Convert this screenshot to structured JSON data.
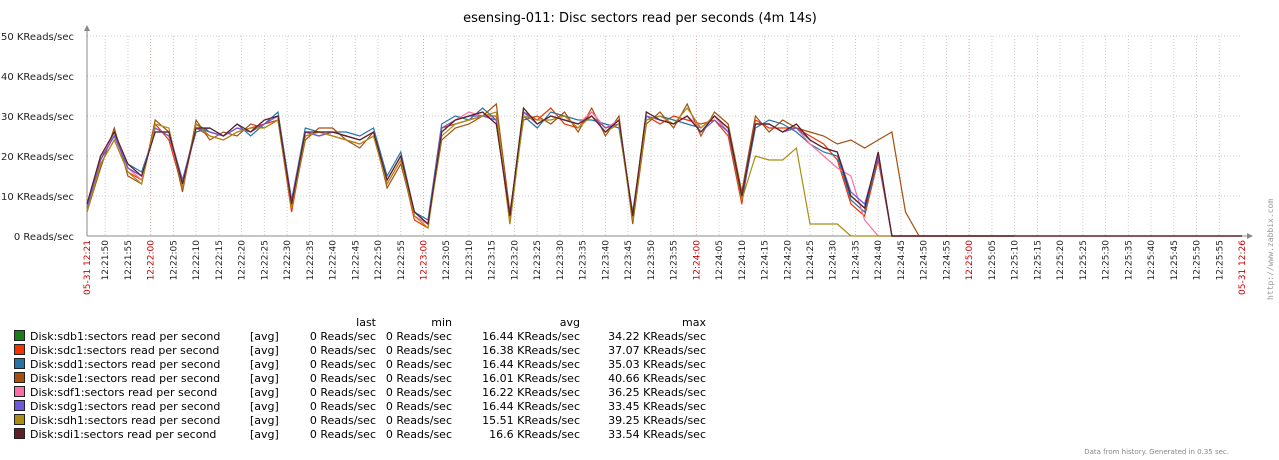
{
  "chart_data": {
    "type": "line",
    "title": "esensing-011: Disc sectors read per seconds (4m 14s)",
    "y_unit": "KReads/sec",
    "ylim": [
      0,
      50
    ],
    "y_ticks": [
      "0 Reads/sec",
      "10 KReads/sec",
      "20 KReads/sec",
      "30 KReads/sec",
      "40 KReads/sec",
      "50 KReads/sec"
    ],
    "x_start": "12:21:46",
    "x_end": "12:26:00",
    "x_start_label": "05-31 12:21",
    "x_end_label": "05-31 12:26",
    "x_minute_labels": [
      "12:22:00",
      "12:23:00",
      "12:24:00",
      "12:25:00"
    ],
    "x_tick_labels": [
      "12:21:50",
      "12:21:55",
      "12:22:05",
      "12:22:10",
      "12:22:15",
      "12:22:20",
      "12:22:25",
      "12:22:30",
      "12:22:35",
      "12:22:40",
      "12:22:45",
      "12:22:50",
      "12:22:55",
      "12:23:05",
      "12:23:10",
      "12:23:15",
      "12:23:20",
      "12:23:25",
      "12:23:30",
      "12:23:35",
      "12:23:40",
      "12:23:45",
      "12:23:50",
      "12:23:55",
      "12:24:05",
      "12:24:10",
      "12:24:15",
      "12:24:20",
      "12:24:25",
      "12:24:30",
      "12:24:35",
      "12:24:40",
      "12:24:45",
      "12:24:50",
      "12:24:55",
      "12:25:05",
      "12:25:10",
      "12:25:15",
      "12:25:20",
      "12:25:25",
      "12:25:30",
      "12:25:35",
      "12:25:40",
      "12:25:45",
      "12:25:50",
      "12:25:55"
    ],
    "grid": true,
    "legend_position": "bottom",
    "x": [
      "12:21:46",
      "12:21:49",
      "12:21:52",
      "12:21:55",
      "12:21:58",
      "12:22:01",
      "12:22:04",
      "12:22:07",
      "12:22:10",
      "12:22:13",
      "12:22:16",
      "12:22:19",
      "12:22:22",
      "12:22:25",
      "12:22:28",
      "12:22:31",
      "12:22:34",
      "12:22:37",
      "12:22:40",
      "12:22:43",
      "12:22:46",
      "12:22:49",
      "12:22:52",
      "12:22:55",
      "12:22:58",
      "12:23:01",
      "12:23:04",
      "12:23:07",
      "12:23:10",
      "12:23:13",
      "12:23:16",
      "12:23:19",
      "12:23:22",
      "12:23:25",
      "12:23:28",
      "12:23:31",
      "12:23:34",
      "12:23:37",
      "12:23:40",
      "12:23:43",
      "12:23:46",
      "12:23:49",
      "12:23:52",
      "12:23:55",
      "12:23:58",
      "12:24:01",
      "12:24:04",
      "12:24:07",
      "12:24:10",
      "12:24:13",
      "12:24:16",
      "12:24:19",
      "12:24:22",
      "12:24:25",
      "12:24:28",
      "12:24:31",
      "12:24:34",
      "12:24:37",
      "12:24:40",
      "12:24:43",
      "12:24:46",
      "12:24:49",
      "12:24:52",
      "12:24:55",
      "12:24:58",
      "12:25:01",
      "12:25:04",
      "12:25:07",
      "12:25:10"
    ],
    "series": [
      {
        "name": "Disk:sdb1:sectors read per second",
        "function": "[avg]",
        "last": "0 Reads/sec",
        "min": "0 Reads/sec",
        "avg": "16.44 KReads/sec",
        "max": "34.22 KReads/sec",
        "color": "#1a7c1a",
        "values": [
          7,
          19,
          26,
          17,
          15,
          27,
          25,
          13,
          28,
          26,
          25,
          27,
          26,
          29,
          30,
          8,
          26,
          25,
          26,
          25,
          24,
          26,
          14,
          20,
          6,
          3,
          26,
          29,
          30,
          31,
          28,
          5,
          32,
          28,
          30,
          29,
          28,
          30,
          26,
          29,
          5,
          31,
          29,
          28,
          30,
          26,
          30,
          27,
          10,
          28,
          28,
          26,
          28,
          24,
          22,
          21,
          10,
          7,
          21,
          0,
          0,
          0,
          0,
          0,
          0,
          0,
          0,
          0,
          0
        ]
      },
      {
        "name": "Disk:sdc1:sectors read per second",
        "function": "[avg]",
        "last": "0 Reads/sec",
        "min": "0 Reads/sec",
        "avg": "16.38 KReads/sec",
        "max": "37.07 KReads/sec",
        "color": "#f63100",
        "values": [
          6,
          18,
          24,
          16,
          14,
          28,
          24,
          12,
          27,
          25,
          24,
          26,
          27,
          28,
          29,
          6,
          25,
          26,
          25,
          24,
          23,
          25,
          13,
          19,
          4,
          2,
          27,
          28,
          29,
          30,
          30,
          3,
          31,
          29,
          32,
          28,
          27,
          31,
          27,
          28,
          4,
          30,
          28,
          30,
          29,
          28,
          29,
          25,
          8,
          29,
          27,
          27,
          27,
          25,
          23,
          19,
          8,
          5,
          19,
          0,
          0,
          0,
          0,
          0,
          0,
          0,
          0,
          0,
          0
        ]
      },
      {
        "name": "Disk:sdd1:sectors read per second",
        "function": "[avg]",
        "last": "0 Reads/sec",
        "min": "0 Reads/sec",
        "avg": "16.44 KReads/sec",
        "max": "35.03 KReads/sec",
        "color": "#2774a4",
        "values": [
          8,
          20,
          25,
          18,
          16,
          26,
          26,
          14,
          26,
          27,
          25,
          28,
          25,
          28,
          31,
          9,
          27,
          26,
          26,
          26,
          25,
          27,
          15,
          21,
          6,
          4,
          28,
          30,
          29,
          32,
          29,
          4,
          30,
          27,
          31,
          30,
          29,
          29,
          28,
          27,
          6,
          29,
          30,
          29,
          28,
          27,
          30,
          26,
          9,
          27,
          29,
          28,
          26,
          23,
          21,
          20,
          9,
          6,
          20,
          0,
          0,
          0,
          0,
          0,
          0,
          0,
          0,
          0,
          0
        ]
      },
      {
        "name": "Disk:sde1:sectors read per second",
        "function": "[avg]",
        "last": "0 Reads/sec",
        "min": "0 Reads/sec",
        "avg": "16.01 KReads/sec",
        "max": "40.66 KReads/sec",
        "color": "#a54f10",
        "values": [
          6,
          17,
          27,
          15,
          13,
          29,
          26,
          11,
          29,
          24,
          26,
          25,
          28,
          27,
          29,
          7,
          24,
          27,
          27,
          24,
          22,
          26,
          12,
          18,
          5,
          3,
          24,
          27,
          28,
          30,
          33,
          6,
          29,
          30,
          28,
          31,
          26,
          32,
          25,
          30,
          3,
          28,
          31,
          27,
          33,
          25,
          31,
          28,
          11,
          30,
          26,
          29,
          27,
          26,
          25,
          23,
          24,
          22,
          24,
          26,
          6,
          0,
          0,
          0,
          0,
          0,
          0,
          0,
          0
        ]
      },
      {
        "name": "Disk:sdf1:sectors read per second",
        "function": "[avg]",
        "last": "0 Reads/sec",
        "min": "0 Reads/sec",
        "avg": "16.22 KReads/sec",
        "max": "36.25 KReads/sec",
        "color": "#fc6ea3",
        "values": [
          7,
          20,
          25,
          17,
          14,
          27,
          25,
          13,
          27,
          26,
          25,
          27,
          26,
          29,
          30,
          8,
          26,
          25,
          26,
          25,
          24,
          26,
          14,
          20,
          5,
          3,
          27,
          29,
          31,
          30,
          29,
          4,
          31,
          28,
          30,
          29,
          28,
          31,
          27,
          29,
          5,
          30,
          29,
          28,
          30,
          27,
          30,
          26,
          10,
          28,
          28,
          26,
          27,
          23,
          20,
          17,
          15,
          4,
          0,
          0,
          0,
          0,
          0,
          0,
          0,
          0,
          0,
          0,
          0
        ]
      },
      {
        "name": "Disk:sdg1:sectors read per second",
        "function": "[avg]",
        "last": "0 Reads/sec",
        "min": "0 Reads/sec",
        "avg": "16.44 KReads/sec",
        "max": "33.45 KReads/sec",
        "color": "#6c59dc",
        "values": [
          7,
          19,
          25,
          17,
          15,
          27,
          25,
          14,
          27,
          26,
          25,
          27,
          26,
          28,
          30,
          9,
          26,
          25,
          26,
          25,
          24,
          26,
          14,
          20,
          6,
          3,
          27,
          29,
          30,
          30,
          29,
          5,
          31,
          28,
          30,
          29,
          28,
          30,
          27,
          28,
          5,
          30,
          29,
          28,
          30,
          26,
          29,
          26,
          10,
          28,
          28,
          26,
          27,
          24,
          22,
          21,
          11,
          8,
          20,
          0,
          0,
          0,
          0,
          0,
          0,
          0,
          0,
          0,
          0
        ]
      },
      {
        "name": "Disk:sdh1:sectors read per second",
        "function": "[avg]",
        "last": "0 Reads/sec",
        "min": "0 Reads/sec",
        "avg": "15.51 KReads/sec",
        "max": "39.25 KReads/sec",
        "color": "#ac8c14",
        "values": [
          6,
          18,
          24,
          16,
          13,
          28,
          27,
          12,
          28,
          25,
          24,
          26,
          27,
          27,
          29,
          7,
          25,
          26,
          25,
          24,
          23,
          25,
          13,
          19,
          5,
          2,
          25,
          28,
          29,
          30,
          31,
          3,
          30,
          29,
          29,
          30,
          27,
          30,
          26,
          28,
          4,
          29,
          30,
          28,
          32,
          27,
          30,
          27,
          9,
          20,
          19,
          19,
          22,
          3,
          3,
          3,
          0,
          0,
          0,
          0,
          0,
          0,
          0,
          0,
          0,
          0,
          0,
          0,
          0
        ]
      },
      {
        "name": "Disk:sdi1:sectors read per second",
        "function": "[avg]",
        "last": "0 Reads/sec",
        "min": "0 Reads/sec",
        "avg": "16.6 KReads/sec",
        "max": "33.54 KReads/sec",
        "color": "#611f27",
        "values": [
          8,
          20,
          26,
          18,
          15,
          26,
          26,
          13,
          27,
          27,
          25,
          28,
          26,
          29,
          30,
          8,
          26,
          26,
          26,
          25,
          24,
          26,
          14,
          20,
          6,
          3,
          26,
          29,
          30,
          31,
          28,
          5,
          32,
          28,
          30,
          29,
          28,
          30,
          26,
          29,
          5,
          31,
          29,
          28,
          30,
          26,
          30,
          27,
          10,
          28,
          28,
          26,
          28,
          24,
          22,
          21,
          10,
          7,
          21,
          0,
          0,
          0,
          0,
          0,
          0,
          0,
          0,
          0,
          0
        ]
      }
    ]
  },
  "legend": {
    "headers": {
      "last": "last",
      "min": "min",
      "avg": "avg",
      "max": "max"
    }
  },
  "footer": "Data from history. Generated in 0.35 sec.",
  "watermark": "http://www.zabbix.com"
}
